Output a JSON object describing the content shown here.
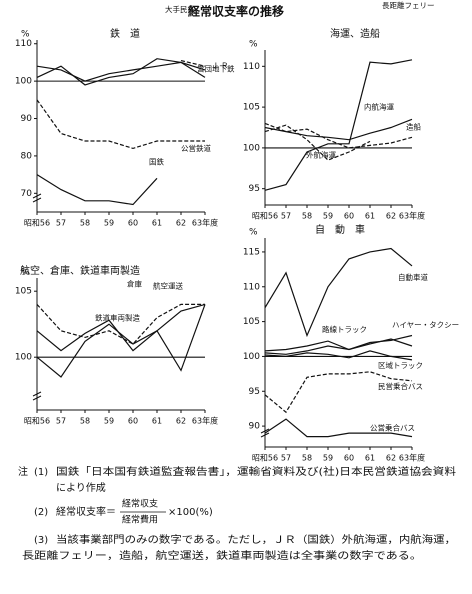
{
  "title": "経常収支率の推移",
  "chart_data": [
    {
      "type": "line",
      "title": "鉄　道",
      "y_unit": "%",
      "categories": [
        "昭和56",
        "57",
        "58",
        "59",
        "60",
        "61",
        "62",
        "63年度"
      ],
      "ylim": [
        65,
        111
      ],
      "yticks": [
        70,
        80,
        90,
        100,
        110
      ],
      "baseline": 100,
      "axis_break": true,
      "series": [
        {
          "name": "大手民鉄",
          "color": "#111111",
          "dashed": false,
          "values": [
            104,
            103,
            100,
            102,
            103,
            104,
            105,
            103
          ]
        },
        {
          "name": "Ｊ Ｒ",
          "color": "#111111",
          "dashed": true,
          "values": [
            null,
            null,
            null,
            null,
            null,
            null,
            105.5,
            104
          ]
        },
        {
          "name": "営団地下鉄",
          "color": "#111111",
          "dashed": false,
          "values": [
            101,
            104,
            99,
            101,
            102,
            106,
            105,
            101
          ]
        },
        {
          "name": "公営鉄道",
          "color": "#111111",
          "dashed": true,
          "values": [
            95,
            86,
            84,
            84,
            82,
            84,
            84,
            84
          ]
        },
        {
          "name": "国鉄",
          "color": "#111111",
          "dashed": false,
          "values": [
            75,
            71,
            68,
            68,
            67,
            74,
            null,
            null
          ]
        }
      ]
    },
    {
      "type": "line",
      "title": "海運、造船",
      "y_unit": "%",
      "categories": [
        "昭和56",
        "57",
        "58",
        "59",
        "60",
        "61",
        "62",
        "63年度"
      ],
      "ylim": [
        93,
        112
      ],
      "yticks": [
        95,
        100,
        105,
        110
      ],
      "baseline": 100,
      "axis_break": false,
      "series": [
        {
          "name": "長距離フェリー",
          "color": "#111111",
          "dashed": false,
          "values": [
            94.8,
            95.5,
            99.5,
            100.5,
            100.5,
            110.5,
            110.3,
            110.8
          ]
        },
        {
          "name": "内航海運",
          "color": "#111111",
          "dashed": false,
          "values": [
            102.5,
            102,
            101.5,
            101.3,
            101,
            101.8,
            102.5,
            103.5
          ]
        },
        {
          "name": "造船",
          "color": "#111111",
          "dashed": true,
          "values": [
            103,
            102,
            102.3,
            101,
            100,
            100.3,
            100.6,
            101.3
          ]
        },
        {
          "name": "外航海運",
          "color": "#111111",
          "dashed": true,
          "values": [
            102,
            102.8,
            101,
            98.5,
            99.5,
            100.8,
            null,
            null
          ]
        }
      ]
    },
    {
      "type": "line",
      "title": "航空、倉庫、鉄道車両製造",
      "y_unit": "%",
      "categories": [
        "昭和56",
        "57",
        "58",
        "59",
        "60",
        "61",
        "62",
        "63年度"
      ],
      "ylim": [
        96,
        106
      ],
      "yticks": [
        100,
        105
      ],
      "baseline": 100,
      "axis_break": true,
      "series": [
        {
          "name": "航空運送",
          "color": "#111111",
          "dashed": true,
          "values": [
            104,
            102,
            101.5,
            102,
            101,
            103,
            104,
            104
          ]
        },
        {
          "name": "倉庫",
          "color": "#111111",
          "dashed": false,
          "values": [
            102,
            100.5,
            101.8,
            102.8,
            100.5,
            102,
            103.5,
            104
          ]
        },
        {
          "name": "鉄道車両製造",
          "color": "#111111",
          "dashed": false,
          "values": [
            100,
            98.5,
            101.2,
            102.5,
            101,
            102,
            99,
            104
          ]
        }
      ]
    },
    {
      "type": "line",
      "title": "自　動　車",
      "y_unit": "%",
      "categories": [
        "昭和56",
        "57",
        "58",
        "59",
        "60",
        "61",
        "62",
        "63年度"
      ],
      "ylim": [
        87,
        117
      ],
      "yticks": [
        90,
        95,
        100,
        105,
        110,
        115
      ],
      "baseline": 100,
      "axis_break": true,
      "series": [
        {
          "name": "自動車道",
          "color": "#111111",
          "dashed": false,
          "values": [
            107,
            112,
            103,
            110,
            114,
            115,
            115.5,
            113
          ]
        },
        {
          "name": "ハイヤー・タクシー",
          "color": "#111111",
          "dashed": false,
          "values": [
            100.5,
            100.3,
            100.8,
            101.5,
            101,
            102,
            102.3,
            103
          ]
        },
        {
          "name": "路線トラック",
          "color": "#111111",
          "dashed": false,
          "values": [
            100.8,
            101,
            101.5,
            102.2,
            101,
            101.8,
            102.5,
            101.5
          ]
        },
        {
          "name": "区域トラック",
          "color": "#111111",
          "dashed": false,
          "values": [
            100.2,
            100,
            100.5,
            100.3,
            99.8,
            100.8,
            100,
            99.5
          ]
        },
        {
          "name": "民営乗合バス",
          "color": "#111111",
          "dashed": true,
          "values": [
            94.5,
            92,
            97,
            97.5,
            97.5,
            97.8,
            96.8,
            96.5
          ]
        },
        {
          "name": "公営乗合バス",
          "color": "#111111",
          "dashed": false,
          "values": [
            89,
            91,
            88.5,
            88.5,
            89,
            89,
            89,
            88.5
          ]
        }
      ]
    }
  ],
  "notes": {
    "head": "注",
    "n1": {
      "num": "(1)",
      "text": "国鉄「日本国有鉄道監査報告書」，運輸省資料及び(社)日本民営鉄道協会資料",
      "cont": "により作成"
    },
    "n2": {
      "num": "(2)",
      "lhs": "経常収支率＝",
      "numerator": "経常収支",
      "denominator": "経常費用",
      "rhs": "×100(%)"
    },
    "n3": {
      "num": "(3)",
      "text": "当該事業部門のみの数字である。ただし，ＪＲ（国鉄）外航海運，内航海運，",
      "cont": "長距離フェリー，造船，航空運送，鉄道車両製造は全事業の数字である。"
    }
  }
}
